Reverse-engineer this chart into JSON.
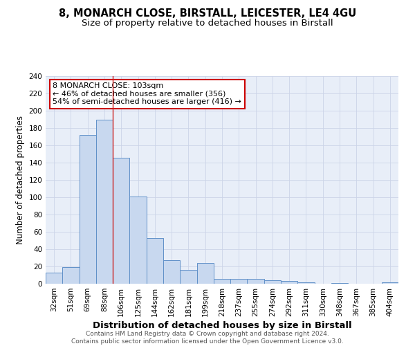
{
  "title1": "8, MONARCH CLOSE, BIRSTALL, LEICESTER, LE4 4GU",
  "title2": "Size of property relative to detached houses in Birstall",
  "xlabel": "Distribution of detached houses by size in Birstall",
  "ylabel": "Number of detached properties",
  "categories": [
    "32sqm",
    "51sqm",
    "69sqm",
    "88sqm",
    "106sqm",
    "125sqm",
    "144sqm",
    "162sqm",
    "181sqm",
    "199sqm",
    "218sqm",
    "237sqm",
    "255sqm",
    "274sqm",
    "292sqm",
    "311sqm",
    "330sqm",
    "348sqm",
    "367sqm",
    "385sqm",
    "404sqm"
  ],
  "values": [
    13,
    19,
    172,
    190,
    146,
    101,
    53,
    27,
    16,
    24,
    6,
    6,
    6,
    4,
    3,
    2,
    0,
    1,
    0,
    0,
    2
  ],
  "bar_color": "#c8d8ef",
  "bar_edge_color": "#6090c8",
  "red_line_index": 4,
  "annotation_text": "8 MONARCH CLOSE: 103sqm\n← 46% of detached houses are smaller (356)\n54% of semi-detached houses are larger (416) →",
  "annotation_box_color": "white",
  "annotation_box_edge_color": "#cc0000",
  "red_line_color": "#cc2222",
  "ylim": [
    0,
    240
  ],
  "yticks": [
    0,
    20,
    40,
    60,
    80,
    100,
    120,
    140,
    160,
    180,
    200,
    220,
    240
  ],
  "grid_color": "#ccd4e8",
  "background_color": "#e8eef8",
  "footer_text": "Contains HM Land Registry data © Crown copyright and database right 2024.\nContains public sector information licensed under the Open Government Licence v3.0.",
  "title1_fontsize": 10.5,
  "title2_fontsize": 9.5,
  "xlabel_fontsize": 9.5,
  "ylabel_fontsize": 8.5,
  "tick_fontsize": 7.5,
  "annotation_fontsize": 8,
  "footer_fontsize": 6.5
}
